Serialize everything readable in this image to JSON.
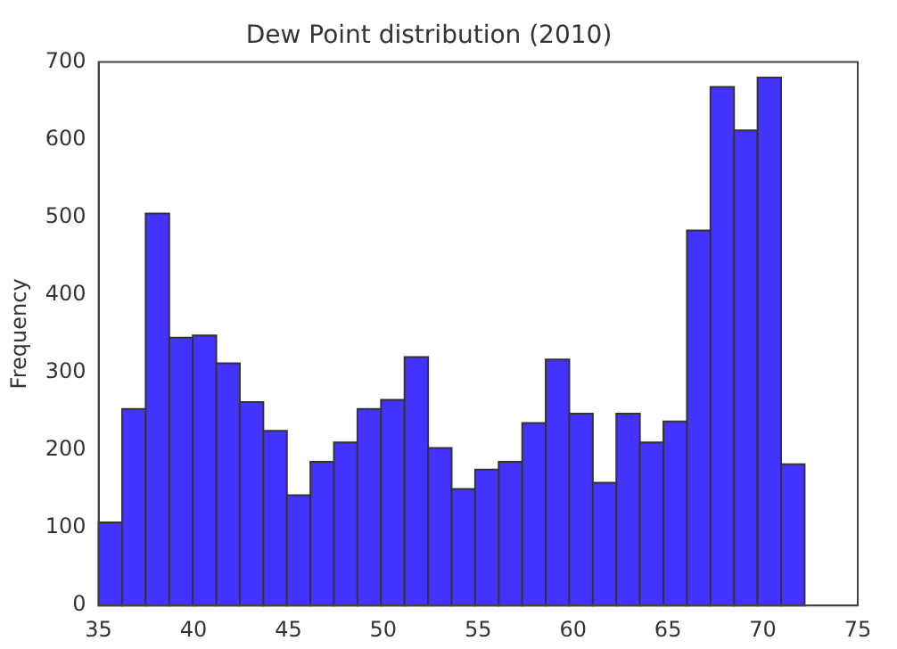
{
  "chart_data": {
    "type": "histogram",
    "title": "Dew Point distribution (2010)",
    "ylabel": "Frequency",
    "color": "#4433ff",
    "bins": [
      35,
      36.24,
      37.48,
      38.72,
      39.96,
      41.2,
      42.44,
      43.68,
      44.92,
      46.16,
      47.4,
      48.64,
      49.88,
      51.12,
      52.36,
      53.6,
      54.84,
      56.08,
      57.32,
      58.56,
      59.8,
      61.04,
      62.28,
      63.52,
      64.76,
      66,
      67.24,
      68.48,
      69.72,
      70.96,
      72.2
    ],
    "values": [
      107,
      253,
      505,
      345,
      348,
      312,
      262,
      225,
      142,
      185,
      210,
      253,
      265,
      320,
      203,
      150,
      175,
      185,
      235,
      317,
      247,
      158,
      247,
      210,
      237,
      483,
      668,
      612,
      680,
      182
    ],
    "xlim": [
      35,
      75
    ],
    "xticks": [
      35,
      40,
      45,
      50,
      55,
      60,
      65,
      70,
      75
    ],
    "ylim": [
      0,
      700
    ],
    "yticks": [
      0,
      100,
      200,
      300,
      400,
      500,
      600,
      700
    ],
    "grid": false,
    "legend": false
  }
}
